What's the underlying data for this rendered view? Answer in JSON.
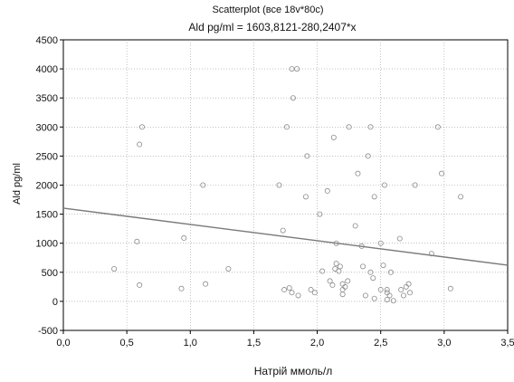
{
  "chart_data": {
    "type": "scatter",
    "title": "Scatterplot (все 18v*80c)",
    "subtitle": "Ald pg/ml = 1603,8121-280,2407*x",
    "xlabel": "Натрій ммоль/л",
    "ylabel": "Ald pg/ml",
    "xlim": [
      0,
      3.5
    ],
    "ylim": [
      -500,
      4500
    ],
    "x_ticks": [
      0,
      0.5,
      1,
      1.5,
      2,
      2.5,
      3,
      3.5
    ],
    "x_tick_labels": [
      "0,0",
      "0,5",
      "1,0",
      "1,5",
      "2,0",
      "2,5",
      "3,0",
      "3,5"
    ],
    "y_ticks": [
      -500,
      0,
      500,
      1000,
      1500,
      2000,
      2500,
      3000,
      3500,
      4000,
      4500
    ],
    "y_tick_labels": [
      "-500",
      "0",
      "500",
      "1000",
      "1500",
      "2000",
      "2500",
      "3000",
      "3500",
      "4000",
      "4500"
    ],
    "grid": true,
    "regression": {
      "intercept": 1603.8121,
      "slope": -280.2407
    },
    "series": [
      {
        "points": [
          [
            0.62,
            3000
          ],
          [
            0.6,
            2700
          ],
          [
            0.58,
            1030
          ],
          [
            0.6,
            280
          ],
          [
            0.4,
            560
          ],
          [
            0.95,
            1090
          ],
          [
            0.93,
            220
          ],
          [
            1.1,
            2000
          ],
          [
            1.12,
            300
          ],
          [
            1.3,
            560
          ],
          [
            1.7,
            2000
          ],
          [
            1.73,
            1220
          ],
          [
            1.74,
            200
          ],
          [
            1.76,
            3000
          ],
          [
            1.78,
            230
          ],
          [
            1.8,
            4000
          ],
          [
            1.84,
            4000
          ],
          [
            1.81,
            3500
          ],
          [
            1.8,
            150
          ],
          [
            1.85,
            100
          ],
          [
            1.91,
            1800
          ],
          [
            1.92,
            2500
          ],
          [
            1.95,
            200
          ],
          [
            1.98,
            150
          ],
          [
            2.02,
            1500
          ],
          [
            2.04,
            520
          ],
          [
            2.08,
            1900
          ],
          [
            2.1,
            350
          ],
          [
            2.12,
            280
          ],
          [
            2.13,
            2820
          ],
          [
            2.15,
            650
          ],
          [
            2.14,
            560
          ],
          [
            2.17,
            520
          ],
          [
            2.18,
            600
          ],
          [
            2.15,
            1000
          ],
          [
            2.2,
            300
          ],
          [
            2.2,
            200
          ],
          [
            2.2,
            120
          ],
          [
            2.22,
            250
          ],
          [
            2.24,
            350
          ],
          [
            2.25,
            3000
          ],
          [
            2.3,
            1300
          ],
          [
            2.32,
            2200
          ],
          [
            2.35,
            950
          ],
          [
            2.36,
            600
          ],
          [
            2.38,
            100
          ],
          [
            2.4,
            2500
          ],
          [
            2.42,
            3000
          ],
          [
            2.42,
            500
          ],
          [
            2.45,
            1800
          ],
          [
            2.44,
            400
          ],
          [
            2.45,
            50
          ],
          [
            2.5,
            200
          ],
          [
            2.5,
            1000
          ],
          [
            2.53,
            2000
          ],
          [
            2.52,
            620
          ],
          [
            2.55,
            150
          ],
          [
            2.55,
            200
          ],
          [
            2.57,
            100
          ],
          [
            2.58,
            500
          ],
          [
            2.6,
            10
          ],
          [
            2.55,
            30
          ],
          [
            2.65,
            1080
          ],
          [
            2.66,
            200
          ],
          [
            2.68,
            100
          ],
          [
            2.7,
            250
          ],
          [
            2.72,
            300
          ],
          [
            2.73,
            150
          ],
          [
            2.77,
            2000
          ],
          [
            2.9,
            820
          ],
          [
            2.95,
            3000
          ],
          [
            2.98,
            2200
          ],
          [
            3.05,
            220
          ],
          [
            3.13,
            1800
          ]
        ]
      }
    ]
  }
}
